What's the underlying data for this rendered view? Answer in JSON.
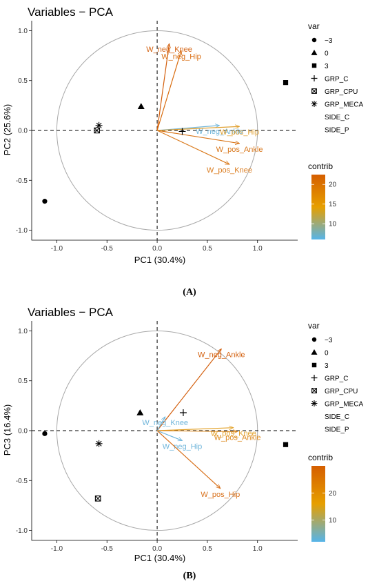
{
  "chart_data": [
    {
      "type": "scatter",
      "title": "Variables − PCA",
      "xlabel": "PC1 (30.4%)",
      "ylabel": "PC2 (25.6%)",
      "xlim": [
        -1.25,
        1.4
      ],
      "ylim": [
        -1.1,
        1.1
      ],
      "x_ticks": [
        -1.0,
        -0.5,
        0.0,
        0.5,
        1.0
      ],
      "y_ticks": [
        -1.0,
        -0.5,
        0.0,
        0.5,
        1.0
      ],
      "x_tick_labels": [
        "-1.0",
        "-0.5",
        "0.0",
        "0.5",
        "1.0"
      ],
      "y_tick_labels": [
        "-1.0",
        "-0.5",
        "0.0",
        "0.5",
        "1.0"
      ],
      "grid": false,
      "unit_circle": true,
      "vectors": [
        {
          "label": "W_neg_Knee",
          "x": 0.12,
          "y": 0.87,
          "contrib": 21,
          "color": "#d35f0d"
        },
        {
          "label": "W_neg_Hip",
          "x": 0.24,
          "y": 0.8,
          "contrib": 20,
          "color": "#d86a0c"
        },
        {
          "label": "W_neg_Ankle",
          "x": 0.62,
          "y": 0.05,
          "contrib": 7,
          "color": "#6fb5da"
        },
        {
          "label": "W_pos_Hip",
          "x": 0.82,
          "y": 0.04,
          "contrib": 14,
          "color": "#e0a030"
        },
        {
          "label": "W_pos_Ankle",
          "x": 0.82,
          "y": -0.13,
          "contrib": 19,
          "color": "#d8761a"
        },
        {
          "label": "W_pos_Knee",
          "x": 0.72,
          "y": -0.34,
          "contrib": 18,
          "color": "#da7a1c"
        }
      ],
      "points": [
        {
          "group": "-3",
          "x": -1.12,
          "y": -0.71,
          "shape": "circle"
        },
        {
          "group": "0",
          "x": -0.16,
          "y": 0.24,
          "shape": "triangle"
        },
        {
          "group": "3",
          "x": 1.28,
          "y": 0.48,
          "shape": "square"
        },
        {
          "group": "GRP_C",
          "x": 0.25,
          "y": -0.01,
          "shape": "plus"
        },
        {
          "group": "GRP_CPU",
          "x": -0.6,
          "y": 0.0,
          "shape": "boxx"
        },
        {
          "group": "GRP_MECA",
          "x": -0.58,
          "y": 0.05,
          "shape": "asterisk"
        }
      ],
      "legend_var_title": "var",
      "legend_var": [
        {
          "label": "−3",
          "shape": "circle"
        },
        {
          "label": "0",
          "shape": "triangle"
        },
        {
          "label": "3",
          "shape": "square"
        },
        {
          "label": "GRP_C",
          "shape": "plus"
        },
        {
          "label": "GRP_CPU",
          "shape": "boxx"
        },
        {
          "label": "GRP_MECA",
          "shape": "asterisk"
        },
        {
          "label": "SIDE_C",
          "shape": "none"
        },
        {
          "label": "SIDE_P",
          "shape": "none"
        }
      ],
      "legend_contrib_title": "contrib",
      "colorbar_range": [
        6,
        22.5
      ],
      "colorbar_ticks": [
        10,
        15,
        20
      ],
      "colorbar_tick_labels": [
        "10",
        "15",
        "20"
      ],
      "legend_position": "right",
      "caption": "(A)"
    },
    {
      "type": "scatter",
      "title": "Variables − PCA",
      "xlabel": "PC1 (30.4%)",
      "ylabel": "PC3 (16.4%)",
      "xlim": [
        -1.25,
        1.4
      ],
      "ylim": [
        -1.1,
        1.1
      ],
      "x_ticks": [
        -1.0,
        -0.5,
        0.0,
        0.5,
        1.0
      ],
      "y_ticks": [
        -1.0,
        -0.5,
        0.0,
        0.5,
        1.0
      ],
      "x_tick_labels": [
        "-1.0",
        "-0.5",
        "0.0",
        "0.5",
        "1.0"
      ],
      "y_tick_labels": [
        "-1.0",
        "-0.5",
        "0.0",
        "0.5",
        "1.0"
      ],
      "grid": false,
      "unit_circle": true,
      "vectors": [
        {
          "label": "W_neg_Ankle",
          "x": 0.64,
          "y": 0.82,
          "contrib": 28,
          "color": "#d35f0d"
        },
        {
          "label": "W_neg_Knee",
          "x": 0.08,
          "y": 0.14,
          "contrib": 4,
          "color": "#6fb5da"
        },
        {
          "label": "W_pos_Knee",
          "x": 0.76,
          "y": 0.03,
          "contrib": 16,
          "color": "#e3a22a"
        },
        {
          "label": "W_pos_Ankle",
          "x": 0.8,
          "y": -0.01,
          "contrib": 20,
          "color": "#dd8a1f"
        },
        {
          "label": "W_neg_Hip",
          "x": 0.25,
          "y": -0.1,
          "contrib": 5,
          "color": "#6fb5da"
        },
        {
          "label": "W_pos_Hip",
          "x": 0.63,
          "y": -0.58,
          "contrib": 24,
          "color": "#d8701a"
        }
      ],
      "points": [
        {
          "group": "-3",
          "x": -1.12,
          "y": -0.03,
          "shape": "circle"
        },
        {
          "group": "0",
          "x": -0.17,
          "y": 0.18,
          "shape": "triangle"
        },
        {
          "group": "3",
          "x": 1.28,
          "y": -0.14,
          "shape": "square"
        },
        {
          "group": "GRP_C",
          "x": 0.26,
          "y": 0.18,
          "shape": "plus"
        },
        {
          "group": "GRP_CPU",
          "x": -0.59,
          "y": -0.68,
          "shape": "boxx"
        },
        {
          "group": "GRP_MECA",
          "x": -0.58,
          "y": -0.13,
          "shape": "asterisk"
        }
      ],
      "legend_var_title": "var",
      "legend_var": [
        {
          "label": "−3",
          "shape": "circle"
        },
        {
          "label": "0",
          "shape": "triangle"
        },
        {
          "label": "3",
          "shape": "square"
        },
        {
          "label": "GRP_C",
          "shape": "plus"
        },
        {
          "label": "GRP_CPU",
          "shape": "boxx"
        },
        {
          "label": "GRP_MECA",
          "shape": "asterisk"
        },
        {
          "label": "SIDE_C",
          "shape": "none"
        },
        {
          "label": "SIDE_P",
          "shape": "none"
        }
      ],
      "legend_contrib_title": "contrib",
      "colorbar_range": [
        2,
        30
      ],
      "colorbar_ticks": [
        10,
        20
      ],
      "colorbar_tick_labels": [
        "10",
        "20"
      ],
      "legend_position": "right",
      "caption": "(B)"
    }
  ],
  "colors": {
    "axis": "#000000",
    "circle": "#a8a8a8",
    "gradient_low": "#56b4e9",
    "gradient_mid": "#e69f00",
    "gradient_high": "#d55e00"
  }
}
